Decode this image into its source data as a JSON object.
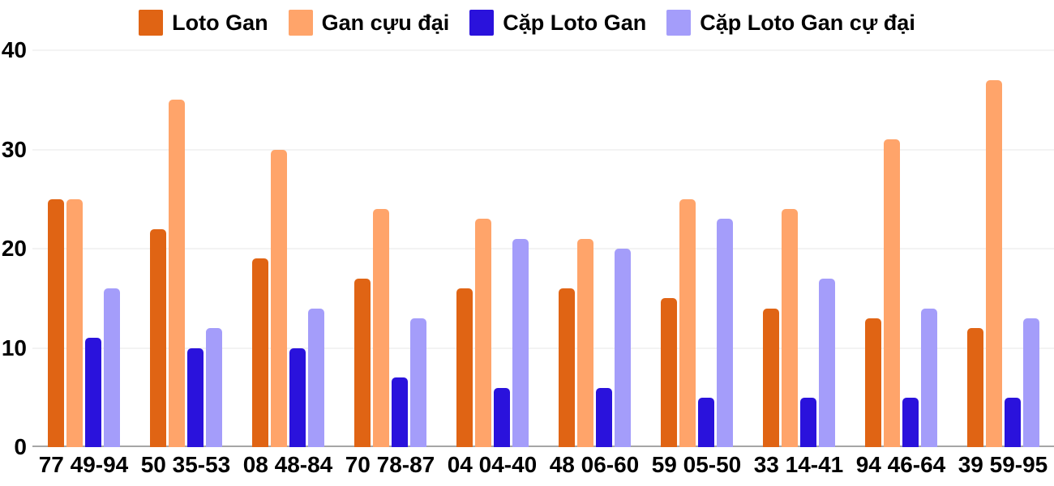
{
  "chart_data": {
    "type": "bar",
    "title": "",
    "xlabel": "",
    "ylabel": "",
    "grid": true,
    "legend_position": "top",
    "ylim": [
      0,
      40
    ],
    "y_ticks": [
      0,
      10,
      20,
      30,
      40
    ],
    "categories": [
      "77 49-94",
      "50 35-53",
      "08 48-84",
      "70 78-87",
      "04 04-40",
      "48 06-60",
      "59 05-50",
      "33 14-41",
      "94 46-64",
      "39 59-95"
    ],
    "series": [
      {
        "name": "Loto Gan",
        "color": "#e06414",
        "values": [
          25,
          22,
          19,
          17,
          16,
          16,
          15,
          14,
          13,
          12
        ]
      },
      {
        "name": "Gan cựu đại",
        "color": "#ffa46a",
        "values": [
          25,
          35,
          30,
          24,
          23,
          21,
          25,
          24,
          31,
          37
        ]
      },
      {
        "name": "Cặp Loto Gan",
        "color": "#2a12dc",
        "values": [
          11,
          10,
          10,
          7,
          6,
          6,
          5,
          5,
          5,
          5
        ]
      },
      {
        "name": "Cặp Loto Gan cự đại",
        "color": "#a49dfa",
        "values": [
          16,
          12,
          14,
          13,
          21,
          20,
          23,
          17,
          14,
          13
        ]
      }
    ],
    "colors": {
      "gridline": "#e7e7e7",
      "baseline": "#a6a6a6",
      "text": "#000000",
      "background": "#ffffff"
    }
  }
}
